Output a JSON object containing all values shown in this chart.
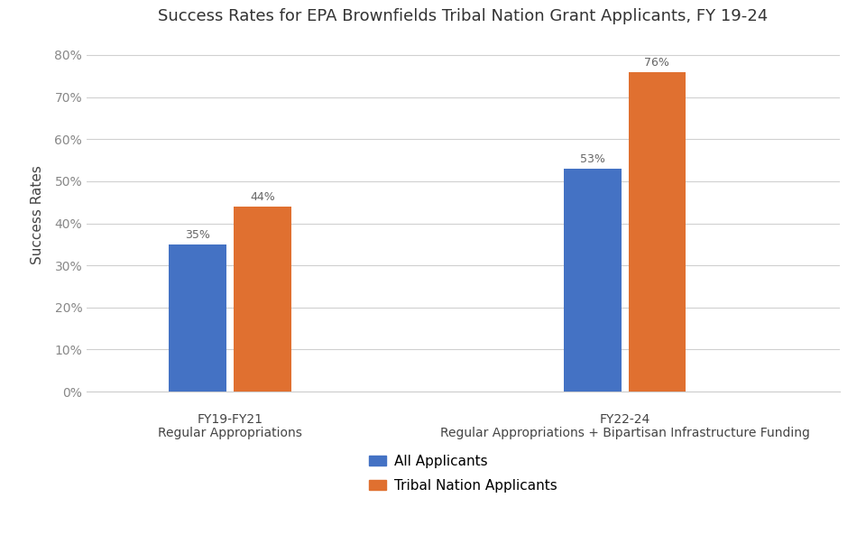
{
  "title": "Success Rates for EPA Brownfields Tribal Nation Grant Applicants, FY 19-24",
  "ylabel": "Success Rates",
  "group_labels_line1": [
    "FY19-FY21",
    "FY22-24"
  ],
  "group_labels_line2": [
    "Regular Appropriations",
    "Regular Appropriations + Bipartisan Infrastructure Funding"
  ],
  "series": {
    "All Applicants": [
      0.35,
      0.53
    ],
    "Tribal Nation Applicants": [
      0.44,
      0.76
    ]
  },
  "bar_colors": {
    "All Applicants": "#4472C4",
    "Tribal Nation Applicants": "#E07030"
  },
  "bar_labels": {
    "All Applicants": [
      "35%",
      "53%"
    ],
    "Tribal Nation Applicants": [
      "44%",
      "76%"
    ]
  },
  "ylim": [
    0,
    0.84
  ],
  "yticks": [
    0.0,
    0.1,
    0.2,
    0.3,
    0.4,
    0.5,
    0.6,
    0.7,
    0.8
  ],
  "ytick_labels": [
    "0%",
    "10%",
    "20%",
    "30%",
    "40%",
    "50%",
    "60%",
    "70%",
    "80%"
  ],
  "background_color": "#FFFFFF",
  "grid_color": "#D0D0D0",
  "title_fontsize": 13,
  "axis_label_fontsize": 11,
  "tick_fontsize": 10,
  "bar_label_fontsize": 9,
  "legend_fontsize": 11,
  "bar_width": 0.32,
  "group_centers": [
    1.0,
    3.2
  ],
  "xlim": [
    0.2,
    4.4
  ]
}
